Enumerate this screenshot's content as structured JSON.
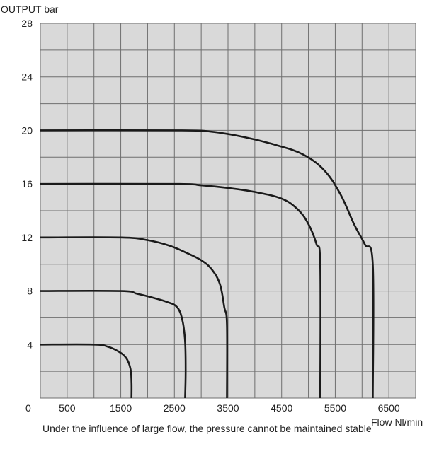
{
  "chart_data": {
    "type": "line",
    "ylabel": "OUTPUT bar",
    "xlabel": "Flow Nl/min",
    "origin_label": "0",
    "x_ticks": [
      "500",
      "1500",
      "2500",
      "3500",
      "4500",
      "5500",
      "6500"
    ],
    "y_ticks": [
      "4",
      "8",
      "12",
      "16",
      "20",
      "24",
      "28"
    ],
    "xlim": [
      0,
      7000
    ],
    "ylim": [
      0,
      28
    ],
    "grid": true,
    "grid_x_step": 500,
    "grid_y_step": 2,
    "background_color": "#d9d9d9",
    "line_color": "#1a1a1a",
    "series": [
      {
        "points": [
          [
            0,
            4
          ],
          [
            1000,
            4
          ],
          [
            1250,
            3.85
          ],
          [
            1450,
            3.5
          ],
          [
            1600,
            3.0
          ],
          [
            1680,
            2.2
          ],
          [
            1700,
            1.2
          ],
          [
            1700,
            0
          ]
        ]
      },
      {
        "points": [
          [
            0,
            8
          ],
          [
            1500,
            8
          ],
          [
            1800,
            7.8
          ],
          [
            2100,
            7.5
          ],
          [
            2350,
            7.2
          ],
          [
            2550,
            6.8
          ],
          [
            2650,
            5.8
          ],
          [
            2700,
            4.2
          ],
          [
            2710,
            2.0
          ],
          [
            2700,
            0
          ]
        ]
      },
      {
        "points": [
          [
            0,
            12
          ],
          [
            1500,
            12
          ],
          [
            2000,
            11.8
          ],
          [
            2400,
            11.4
          ],
          [
            2700,
            10.9
          ],
          [
            3000,
            10.3
          ],
          [
            3200,
            9.6
          ],
          [
            3350,
            8.5
          ],
          [
            3430,
            6.8
          ],
          [
            3480,
            5.5
          ],
          [
            3480,
            0
          ]
        ]
      },
      {
        "points": [
          [
            0,
            16
          ],
          [
            2500,
            16
          ],
          [
            3000,
            15.9
          ],
          [
            3500,
            15.7
          ],
          [
            4000,
            15.4
          ],
          [
            4500,
            14.9
          ],
          [
            4800,
            14.1
          ],
          [
            5000,
            13.0
          ],
          [
            5150,
            11.5
          ],
          [
            5220,
            10.0
          ],
          [
            5220,
            0
          ]
        ]
      },
      {
        "points": [
          [
            0,
            20
          ],
          [
            2600,
            20
          ],
          [
            3200,
            19.9
          ],
          [
            3800,
            19.5
          ],
          [
            4400,
            18.9
          ],
          [
            4900,
            18.2
          ],
          [
            5300,
            17.0
          ],
          [
            5600,
            15.2
          ],
          [
            5850,
            13.0
          ],
          [
            6050,
            11.5
          ],
          [
            6200,
            10.0
          ],
          [
            6200,
            0
          ]
        ]
      }
    ]
  },
  "note": "Under the influence of large flow, the pressure cannot be maintained stable"
}
